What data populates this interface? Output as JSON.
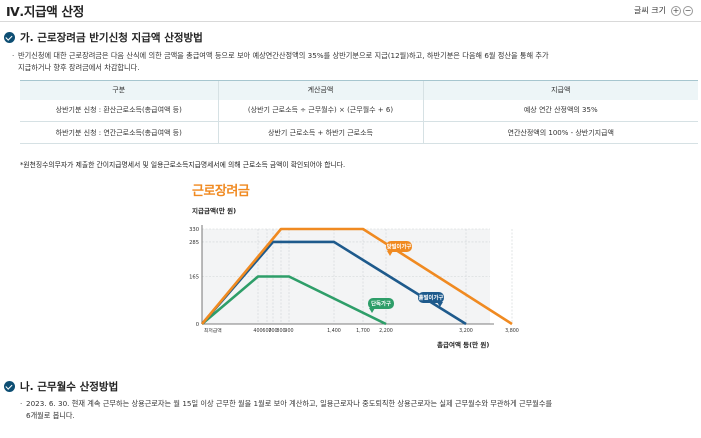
{
  "header": {
    "title": "Ⅳ.지급액 산정",
    "font_size_label": "글씨 크기",
    "plus_label": "+",
    "minus_label": "−"
  },
  "section_a": {
    "title": "가. 근로장려금 반기신청 지급액 산정방법",
    "desc_line1": "반기신청에 대한 근로장려금은 다음 산식에 의한 금액을 총급여액 등으로 보아 예상연간산정액의 35%를 상반기분으로 지급(12월)하고, 하반기분은 다음해 6월 정산을 통해 추가",
    "desc_line2": "지급하거나 향후 장려금에서 차감합니다.",
    "table": {
      "headers": [
        "구분",
        "계산금액",
        "지급액"
      ],
      "rows": [
        [
          "상반기분 신청 : 환산근로소득(총급여액 등)",
          "(상반기 근로소득 ÷ 근무월수) × (근무월수 + 6)",
          "예상 연간 산정액의 35%"
        ],
        [
          "하반기분 신청 : 연간근로소득(총급여액 등)",
          "상반기 근로소득 + 하반기 근로소득",
          "연간산정액의 100% - 상반기지급액"
        ]
      ]
    },
    "note": "*원천징수의무자가 제출한 간이지급명세서 및 일용근로소득지급명세서에 의해 근로소득 금액이 확인되어야 합니다."
  },
  "chart_data": {
    "type": "line",
    "title": "근로장려금",
    "ylabel": "지급금액(만 원)",
    "xlabel": "총급여액 등(만 원)",
    "x_ticks": [
      "최저급액",
      "400",
      "600",
      "700",
      "800",
      "900",
      "1,400",
      "1,700",
      "2,200",
      "3,200",
      "3,800"
    ],
    "y_ticks": [
      "0",
      "165",
      "285",
      "330"
    ],
    "ylim": [
      0,
      330
    ],
    "series": [
      {
        "name": "단독가구",
        "color": "#2e9e69",
        "x": [
          0,
          400,
          900,
          2200
        ],
        "y": [
          0,
          165,
          165,
          0
        ]
      },
      {
        "name": "홑벌이가구",
        "color": "#1e5a8c",
        "x": [
          0,
          700,
          1400,
          3200
        ],
        "y": [
          0,
          285,
          285,
          0
        ]
      },
      {
        "name": "맞벌이가구",
        "color": "#f08a21",
        "x": [
          0,
          800,
          1700,
          3800
        ],
        "y": [
          0,
          330,
          330,
          0
        ]
      }
    ],
    "grid": true
  },
  "section_b": {
    "title": "나. 근무월수 산정방법",
    "desc_line1": "2023. 6. 30. 현재 계속 근무하는 상용근로자는 월 15일 이상 근무한 월을 1월로 보아 계산하고, 일용근로자나 중도퇴직한 상용근로자는 실제 근무월수와 무관하게 근무월수를",
    "desc_line2": "6개월로 봅니다."
  }
}
